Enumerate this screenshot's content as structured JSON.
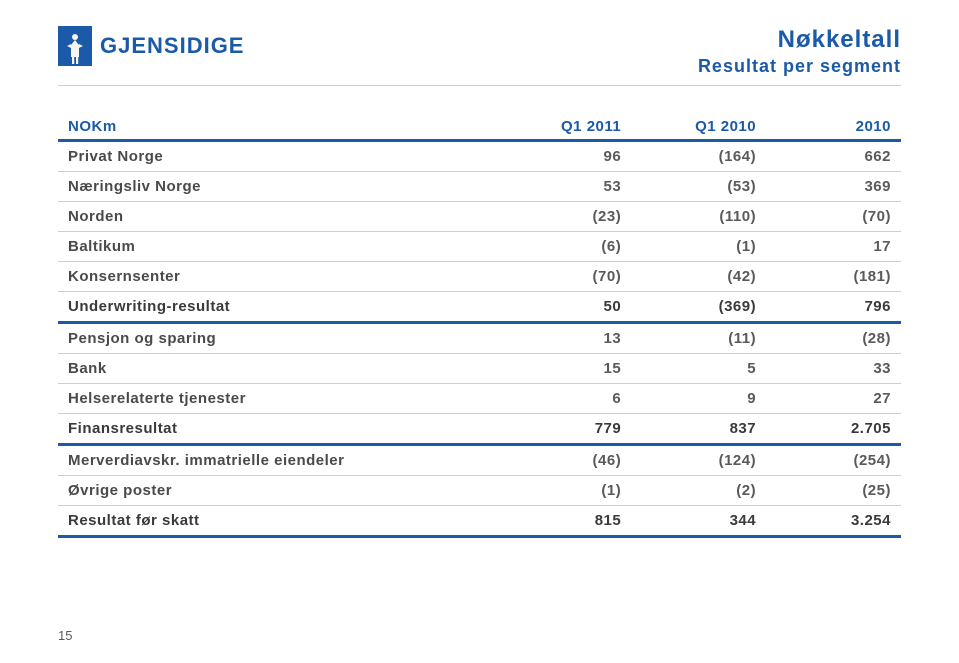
{
  "logo": {
    "brand_text": "GJENSIDIGE"
  },
  "heading": {
    "line1": "Nøkkeltall",
    "line2": "Resultat per segment"
  },
  "page_number": "15",
  "colors": {
    "accent": "#1a5aa8",
    "rule_light": "#cfcfcf",
    "text_dim": "#5a5a5a",
    "text_bold": "#3a3a3a",
    "bg": "#ffffff"
  },
  "table": {
    "type": "table",
    "columns": [
      {
        "key": "label",
        "header": "NOKm",
        "align": "left"
      },
      {
        "key": "q12011",
        "header": "Q1 2011",
        "align": "right"
      },
      {
        "key": "q12010",
        "header": "Q1 2010",
        "align": "right"
      },
      {
        "key": "y2010",
        "header": "2010",
        "align": "right"
      }
    ],
    "rows": [
      {
        "label": "Privat Norge",
        "q12011": "96",
        "q12010": "(164)",
        "y2010": "662",
        "bold": false
      },
      {
        "label": "Næringsliv Norge",
        "q12011": "53",
        "q12010": "(53)",
        "y2010": "369",
        "bold": false
      },
      {
        "label": "Norden",
        "q12011": "(23)",
        "q12010": "(110)",
        "y2010": "(70)",
        "bold": false
      },
      {
        "label": "Baltikum",
        "q12011": "(6)",
        "q12010": "(1)",
        "y2010": "17",
        "bold": false
      },
      {
        "label": "Konsernsenter",
        "q12011": "(70)",
        "q12010": "(42)",
        "y2010": "(181)",
        "bold": false
      },
      {
        "label": "Underwriting-resultat",
        "q12011": "50",
        "q12010": "(369)",
        "y2010": "796",
        "bold": true
      },
      {
        "label": "Pensjon og sparing",
        "q12011": "13",
        "q12010": "(11)",
        "y2010": "(28)",
        "bold": false
      },
      {
        "label": "Bank",
        "q12011": "15",
        "q12010": "5",
        "y2010": "33",
        "bold": false
      },
      {
        "label": "Helserelaterte tjenester",
        "q12011": "6",
        "q12010": "9",
        "y2010": "27",
        "bold": false
      },
      {
        "label": "Finansresultat",
        "q12011": "779",
        "q12010": "837",
        "y2010": "2.705",
        "bold": true
      },
      {
        "label": "Merverdiavskr. immatrielle eiendeler",
        "q12011": "(46)",
        "q12010": "(124)",
        "y2010": "(254)",
        "bold": false
      },
      {
        "label": "Øvrige poster",
        "q12011": "(1)",
        "q12010": "(2)",
        "y2010": "(25)",
        "bold": false
      },
      {
        "label": "Resultat før skatt",
        "q12011": "815",
        "q12010": "344",
        "y2010": "3.254",
        "bold": true
      }
    ]
  }
}
